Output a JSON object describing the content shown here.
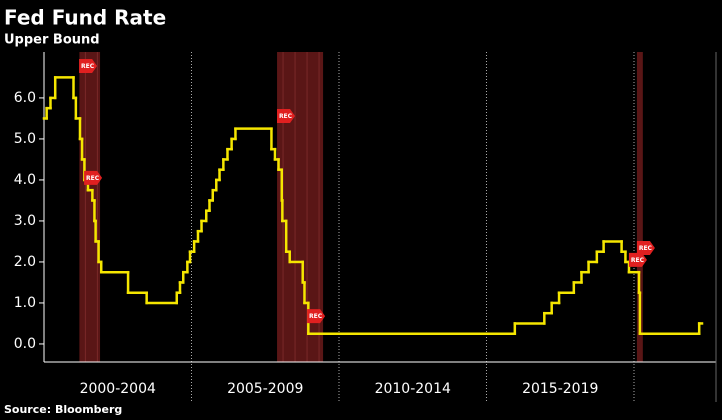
{
  "chart_data": {
    "type": "step",
    "title": "Fed Fund Rate",
    "subtitle": "Upper Bound",
    "source": "Source: Bloomberg",
    "color": "#f5e600",
    "xlim": [
      2000,
      2022.78
    ],
    "ylim": [
      -0.44,
      7.12
    ],
    "yticks": [
      {
        "value": 0,
        "label": "0.0"
      },
      {
        "value": 1,
        "label": "1.0"
      },
      {
        "value": 2,
        "label": "2.0"
      },
      {
        "value": 3,
        "label": "3.0"
      },
      {
        "value": 4,
        "label": "4.0"
      },
      {
        "value": 5,
        "label": "5.0"
      },
      {
        "value": 6,
        "label": "6.0"
      }
    ],
    "categories": [
      {
        "label": "2000-2004",
        "from": 2000,
        "to": 2005
      },
      {
        "label": "2005-2009",
        "from": 2005,
        "to": 2010
      },
      {
        "label": "2010-2014",
        "from": 2010,
        "to": 2015
      },
      {
        "label": "2015-2019",
        "from": 2015,
        "to": 2020
      }
    ],
    "recessions": [
      {
        "start": 2001.2,
        "end": 2001.9
      },
      {
        "start": 2007.9,
        "end": 2009.46
      },
      {
        "start": 2020.1,
        "end": 2020.3
      }
    ],
    "recession_color": "#5a1616",
    "annotations": [
      {
        "text": "REC",
        "x": 2001.46,
        "y": 6.78
      },
      {
        "text": "REC",
        "x": 2001.63,
        "y": 4.05
      },
      {
        "text": "REC",
        "x": 2008.17,
        "y": 5.56
      },
      {
        "text": "REC",
        "x": 2009.19,
        "y": 0.68
      },
      {
        "text": "REC",
        "x": 2020.37,
        "y": 2.34
      },
      {
        "text": "REC",
        "x": 2020.1,
        "y": 2.05
      }
    ],
    "x": [
      2000.0,
      2000.09,
      2000.22,
      2000.38,
      2001.0,
      2001.08,
      2001.22,
      2001.29,
      2001.37,
      2001.49,
      2001.64,
      2001.71,
      2001.75,
      2001.85,
      2001.94,
      2002.85,
      2003.48,
      2004.5,
      2004.61,
      2004.72,
      2004.86,
      2004.95,
      2005.09,
      2005.22,
      2005.34,
      2005.5,
      2005.61,
      2005.72,
      2005.84,
      2005.95,
      2006.08,
      2006.22,
      2006.36,
      2006.49,
      2007.71,
      2007.83,
      2007.95,
      2008.06,
      2008.08,
      2008.21,
      2008.33,
      2008.77,
      2008.83,
      2008.96,
      2015.96,
      2016.96,
      2017.21,
      2017.46,
      2017.96,
      2018.22,
      2018.46,
      2018.74,
      2018.97,
      2019.58,
      2019.71,
      2019.83,
      2020.17,
      2020.2,
      2022.21
    ],
    "values": [
      5.5,
      5.75,
      6.0,
      6.5,
      6.0,
      5.5,
      5.0,
      4.5,
      4.0,
      3.75,
      3.5,
      3.0,
      2.5,
      2.0,
      1.75,
      1.25,
      1.0,
      1.25,
      1.5,
      1.75,
      2.0,
      2.25,
      2.5,
      2.75,
      3.0,
      3.25,
      3.5,
      3.75,
      4.0,
      4.25,
      4.5,
      4.75,
      5.0,
      5.25,
      4.75,
      4.5,
      4.25,
      3.5,
      3.0,
      2.25,
      2.0,
      1.5,
      1.0,
      0.25,
      0.5,
      0.75,
      1.0,
      1.25,
      1.5,
      1.75,
      2.0,
      2.25,
      2.5,
      2.25,
      2.0,
      1.75,
      1.25,
      0.25,
      0.5
    ]
  }
}
